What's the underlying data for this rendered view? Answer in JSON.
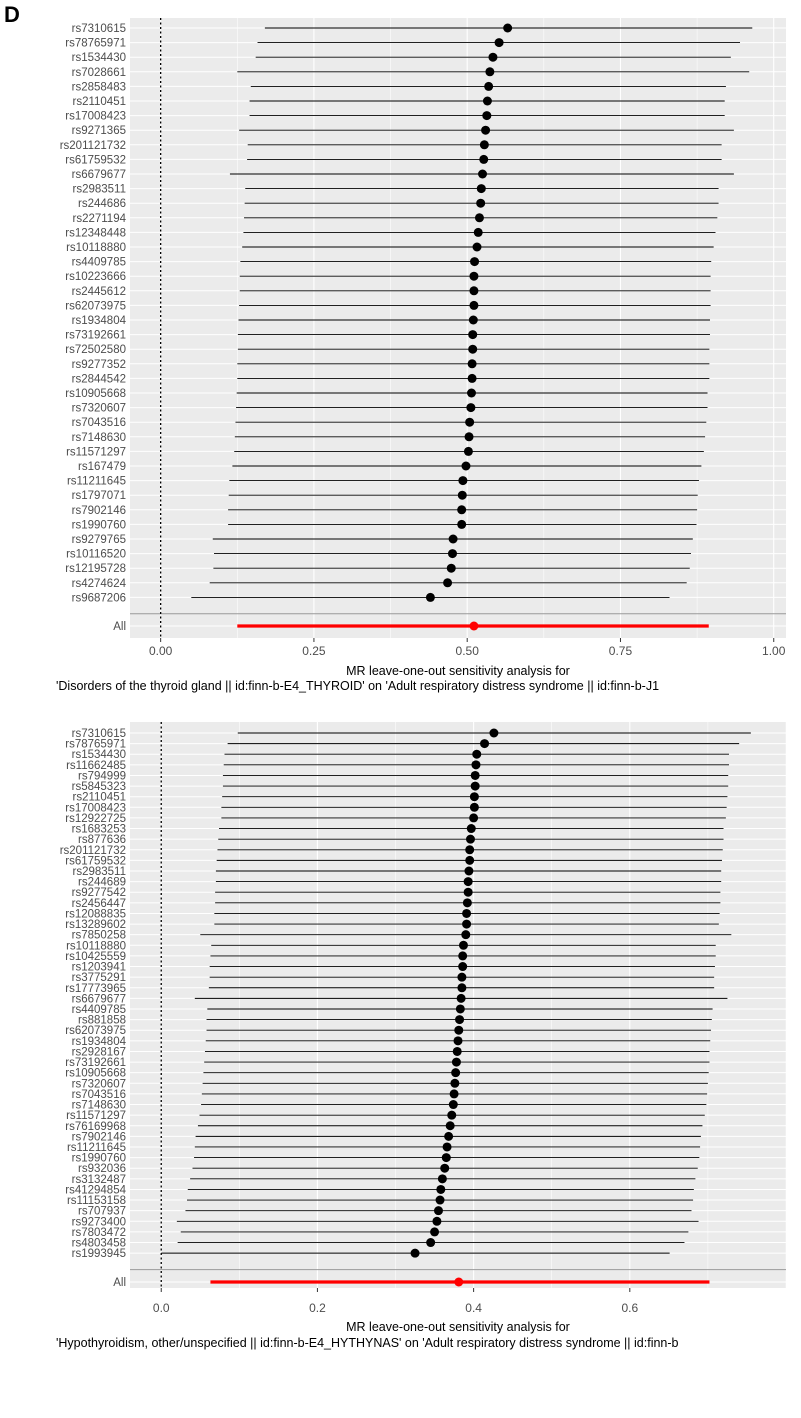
{
  "panel_letter": "D",
  "chart_data": [
    {
      "type": "forest",
      "xlabel_line1": "MR leave-one-out sensitivity analysis for",
      "xlabel_line2": "'Disorders of the thyroid gland || id:finn-b-E4_THYROID' on 'Adult respiratory distress syndrome || id:finn-b-J1",
      "xlim": [
        -0.05,
        1.02
      ],
      "xticks": [
        "0.00",
        "0.25",
        "0.50",
        "0.75",
        "1.00"
      ],
      "xtick_values": [
        0,
        0.25,
        0.5,
        0.75,
        1.0
      ],
      "reference_line": 0,
      "colors": {
        "point": "#000000",
        "ci": "#000000",
        "summary": "#ff0000",
        "panel_bg": "#ebebeb"
      },
      "rows": [
        {
          "label": "rs7310615",
          "est": 0.566,
          "lo": 0.17,
          "hi": 0.965
        },
        {
          "label": "rs78765971",
          "est": 0.552,
          "lo": 0.158,
          "hi": 0.945
        },
        {
          "label": "rs1534430",
          "est": 0.542,
          "lo": 0.155,
          "hi": 0.93
        },
        {
          "label": "rs7028661",
          "est": 0.537,
          "lo": 0.125,
          "hi": 0.96
        },
        {
          "label": "rs2858483",
          "est": 0.535,
          "lo": 0.147,
          "hi": 0.922
        },
        {
          "label": "rs2110451",
          "est": 0.533,
          "lo": 0.145,
          "hi": 0.92
        },
        {
          "label": "rs17008423",
          "est": 0.532,
          "lo": 0.145,
          "hi": 0.92
        },
        {
          "label": "rs9271365",
          "est": 0.53,
          "lo": 0.128,
          "hi": 0.935
        },
        {
          "label": "rs201121732",
          "est": 0.528,
          "lo": 0.142,
          "hi": 0.915
        },
        {
          "label": "rs61759532",
          "est": 0.527,
          "lo": 0.141,
          "hi": 0.915
        },
        {
          "label": "rs6679677",
          "est": 0.525,
          "lo": 0.113,
          "hi": 0.935
        },
        {
          "label": "rs2983511",
          "est": 0.523,
          "lo": 0.138,
          "hi": 0.91
        },
        {
          "label": "rs244686",
          "est": 0.522,
          "lo": 0.137,
          "hi": 0.91
        },
        {
          "label": "rs2271194",
          "est": 0.52,
          "lo": 0.136,
          "hi": 0.908
        },
        {
          "label": "rs12348448",
          "est": 0.518,
          "lo": 0.135,
          "hi": 0.905
        },
        {
          "label": "rs10118880",
          "est": 0.516,
          "lo": 0.133,
          "hi": 0.902
        },
        {
          "label": "rs4409785",
          "est": 0.512,
          "lo": 0.13,
          "hi": 0.898
        },
        {
          "label": "rs10223666",
          "est": 0.511,
          "lo": 0.129,
          "hi": 0.897
        },
        {
          "label": "rs2445612",
          "est": 0.511,
          "lo": 0.129,
          "hi": 0.897
        },
        {
          "label": "rs62073975",
          "est": 0.511,
          "lo": 0.128,
          "hi": 0.897
        },
        {
          "label": "rs1934804",
          "est": 0.51,
          "lo": 0.127,
          "hi": 0.896
        },
        {
          "label": "rs73192661",
          "est": 0.509,
          "lo": 0.126,
          "hi": 0.896
        },
        {
          "label": "rs72502580",
          "est": 0.509,
          "lo": 0.126,
          "hi": 0.895
        },
        {
          "label": "rs9277352",
          "est": 0.508,
          "lo": 0.125,
          "hi": 0.895
        },
        {
          "label": "rs2844542",
          "est": 0.508,
          "lo": 0.125,
          "hi": 0.895
        },
        {
          "label": "rs10905668",
          "est": 0.507,
          "lo": 0.124,
          "hi": 0.892
        },
        {
          "label": "rs7320607",
          "est": 0.506,
          "lo": 0.123,
          "hi": 0.892
        },
        {
          "label": "rs7043516",
          "est": 0.504,
          "lo": 0.122,
          "hi": 0.89
        },
        {
          "label": "rs7148630",
          "est": 0.503,
          "lo": 0.121,
          "hi": 0.888
        },
        {
          "label": "rs11571297",
          "est": 0.502,
          "lo": 0.12,
          "hi": 0.886
        },
        {
          "label": "rs167479",
          "est": 0.498,
          "lo": 0.117,
          "hi": 0.882
        },
        {
          "label": "rs11211645",
          "est": 0.493,
          "lo": 0.112,
          "hi": 0.878
        },
        {
          "label": "rs1797071",
          "est": 0.492,
          "lo": 0.111,
          "hi": 0.876
        },
        {
          "label": "rs7902146",
          "est": 0.491,
          "lo": 0.11,
          "hi": 0.875
        },
        {
          "label": "rs1990760",
          "est": 0.491,
          "lo": 0.11,
          "hi": 0.874
        },
        {
          "label": "rs9279765",
          "est": 0.477,
          "lo": 0.085,
          "hi": 0.868
        },
        {
          "label": "rs10116520",
          "est": 0.476,
          "lo": 0.087,
          "hi": 0.865
        },
        {
          "label": "rs12195728",
          "est": 0.474,
          "lo": 0.086,
          "hi": 0.863
        },
        {
          "label": "rs4274624",
          "est": 0.468,
          "lo": 0.08,
          "hi": 0.858
        },
        {
          "label": "rs9687206",
          "est": 0.44,
          "lo": 0.05,
          "hi": 0.83
        }
      ],
      "summary": {
        "label": "All",
        "est": 0.511,
        "lo": 0.125,
        "hi": 0.894
      }
    },
    {
      "type": "forest",
      "xlabel_line1": "MR leave-one-out sensitivity analysis for",
      "xlabel_line2": "'Hypothyroidism, other/unspecified || id:finn-b-E4_HYTHYNAS' on 'Adult respiratory distress syndrome || id:finn-b",
      "xlim": [
        -0.04,
        0.8
      ],
      "xticks": [
        "0.0",
        "0.2",
        "0.4",
        "0.6"
      ],
      "xtick_values": [
        0,
        0.2,
        0.4,
        0.6
      ],
      "reference_line": 0,
      "colors": {
        "point": "#000000",
        "ci": "#000000",
        "summary": "#ff0000",
        "panel_bg": "#ebebeb"
      },
      "rows": [
        {
          "label": "rs7310615",
          "est": 0.426,
          "lo": 0.098,
          "hi": 0.755
        },
        {
          "label": "rs78765971",
          "est": 0.414,
          "lo": 0.085,
          "hi": 0.74
        },
        {
          "label": "rs1534430",
          "est": 0.404,
          "lo": 0.081,
          "hi": 0.727
        },
        {
          "label": "rs11662485",
          "est": 0.403,
          "lo": 0.08,
          "hi": 0.727
        },
        {
          "label": "rs794999",
          "est": 0.402,
          "lo": 0.079,
          "hi": 0.726
        },
        {
          "label": "rs5845323",
          "est": 0.402,
          "lo": 0.079,
          "hi": 0.726
        },
        {
          "label": "rs2110451",
          "est": 0.401,
          "lo": 0.078,
          "hi": 0.725
        },
        {
          "label": "rs17008423",
          "est": 0.401,
          "lo": 0.077,
          "hi": 0.724
        },
        {
          "label": "rs12922725",
          "est": 0.4,
          "lo": 0.077,
          "hi": 0.723
        },
        {
          "label": "rs1683253",
          "est": 0.397,
          "lo": 0.074,
          "hi": 0.72
        },
        {
          "label": "rs877636",
          "est": 0.396,
          "lo": 0.073,
          "hi": 0.72
        },
        {
          "label": "rs201121732",
          "est": 0.395,
          "lo": 0.072,
          "hi": 0.719
        },
        {
          "label": "rs61759532",
          "est": 0.395,
          "lo": 0.071,
          "hi": 0.718
        },
        {
          "label": "rs2983511",
          "est": 0.394,
          "lo": 0.07,
          "hi": 0.717
        },
        {
          "label": "rs244689",
          "est": 0.393,
          "lo": 0.07,
          "hi": 0.717
        },
        {
          "label": "rs9277542",
          "est": 0.393,
          "lo": 0.069,
          "hi": 0.716
        },
        {
          "label": "rs2456447",
          "est": 0.392,
          "lo": 0.069,
          "hi": 0.716
        },
        {
          "label": "rs12088835",
          "est": 0.391,
          "lo": 0.068,
          "hi": 0.715
        },
        {
          "label": "rs13289602",
          "est": 0.391,
          "lo": 0.068,
          "hi": 0.714
        },
        {
          "label": "rs7850258",
          "est": 0.39,
          "lo": 0.05,
          "hi": 0.73
        },
        {
          "label": "rs10118880",
          "est": 0.387,
          "lo": 0.064,
          "hi": 0.71
        },
        {
          "label": "rs10425559",
          "est": 0.386,
          "lo": 0.063,
          "hi": 0.71
        },
        {
          "label": "rs1203941",
          "est": 0.386,
          "lo": 0.062,
          "hi": 0.709
        },
        {
          "label": "rs3775291",
          "est": 0.385,
          "lo": 0.062,
          "hi": 0.708
        },
        {
          "label": "rs17773965",
          "est": 0.385,
          "lo": 0.061,
          "hi": 0.708
        },
        {
          "label": "rs6679677",
          "est": 0.384,
          "lo": 0.043,
          "hi": 0.725
        },
        {
          "label": "rs4409785",
          "est": 0.383,
          "lo": 0.059,
          "hi": 0.706
        },
        {
          "label": "rs881858",
          "est": 0.382,
          "lo": 0.058,
          "hi": 0.705
        },
        {
          "label": "rs62073975",
          "est": 0.381,
          "lo": 0.058,
          "hi": 0.704
        },
        {
          "label": "rs1934804",
          "est": 0.38,
          "lo": 0.057,
          "hi": 0.703
        },
        {
          "label": "rs2928167",
          "est": 0.379,
          "lo": 0.056,
          "hi": 0.702
        },
        {
          "label": "rs73192661",
          "est": 0.378,
          "lo": 0.055,
          "hi": 0.702
        },
        {
          "label": "rs10905668",
          "est": 0.377,
          "lo": 0.054,
          "hi": 0.701
        },
        {
          "label": "rs7320607",
          "est": 0.376,
          "lo": 0.053,
          "hi": 0.7
        },
        {
          "label": "rs7043516",
          "est": 0.375,
          "lo": 0.052,
          "hi": 0.699
        },
        {
          "label": "rs7148630",
          "est": 0.374,
          "lo": 0.051,
          "hi": 0.698
        },
        {
          "label": "rs11571297",
          "est": 0.372,
          "lo": 0.049,
          "hi": 0.696
        },
        {
          "label": "rs76169968",
          "est": 0.37,
          "lo": 0.047,
          "hi": 0.693
        },
        {
          "label": "rs7902146",
          "est": 0.368,
          "lo": 0.044,
          "hi": 0.691
        },
        {
          "label": "rs11211645",
          "est": 0.366,
          "lo": 0.043,
          "hi": 0.69
        },
        {
          "label": "rs1990760",
          "est": 0.365,
          "lo": 0.042,
          "hi": 0.689
        },
        {
          "label": "rs932036",
          "est": 0.363,
          "lo": 0.04,
          "hi": 0.687
        },
        {
          "label": "rs3132487",
          "est": 0.36,
          "lo": 0.037,
          "hi": 0.684
        },
        {
          "label": "rs41294854",
          "est": 0.358,
          "lo": 0.034,
          "hi": 0.682
        },
        {
          "label": "rs11153158",
          "est": 0.357,
          "lo": 0.033,
          "hi": 0.681
        },
        {
          "label": "rs707937",
          "est": 0.355,
          "lo": 0.031,
          "hi": 0.679
        },
        {
          "label": "rs9273400",
          "est": 0.353,
          "lo": 0.02,
          "hi": 0.688
        },
        {
          "label": "rs7803472",
          "est": 0.35,
          "lo": 0.025,
          "hi": 0.675
        },
        {
          "label": "rs4803458",
          "est": 0.345,
          "lo": 0.021,
          "hi": 0.67
        },
        {
          "label": "rs1993945",
          "est": 0.325,
          "lo": 0.0,
          "hi": 0.651
        }
      ],
      "summary": {
        "label": "All",
        "est": 0.381,
        "lo": 0.063,
        "hi": 0.702
      }
    }
  ]
}
